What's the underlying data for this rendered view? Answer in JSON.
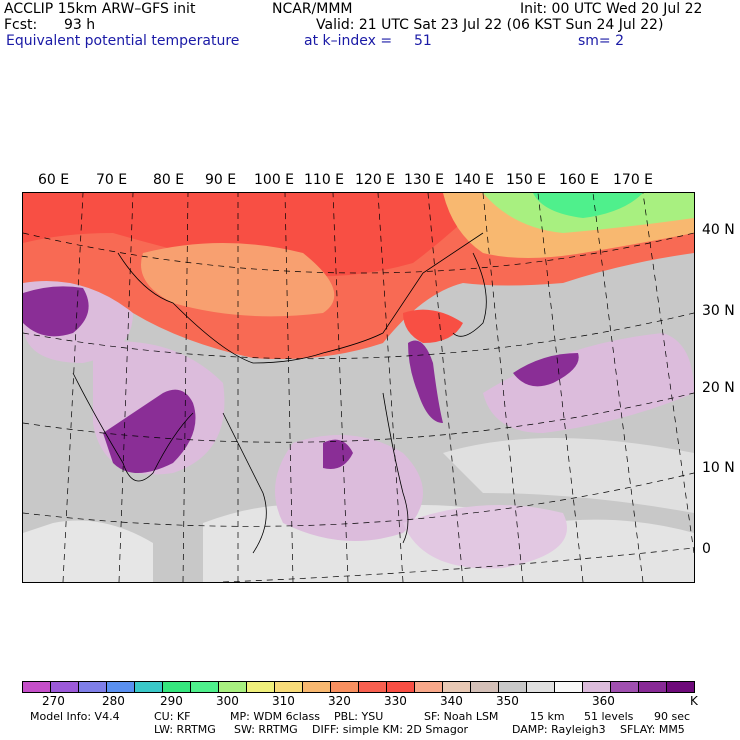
{
  "header": {
    "model": "ACCLIP 15km ARW–GFS init",
    "center": "NCAR/MMM",
    "init": "Init: 00 UTC Wed 20 Jul 22",
    "fcst_label": "Fcst:",
    "fcst_value": "93 h",
    "valid": "Valid: 21 UTC Sat 23 Jul 22 (06 KST Sun 24 Jul 22)",
    "field": "Equivalent potential temperature",
    "level": "at k–index =",
    "level_value": "51",
    "smooth": "sm= 2"
  },
  "map": {
    "lon_labels": [
      "60 E",
      "70 E",
      "80 E",
      "90 E",
      "100 E",
      "110 E",
      "120 E",
      "130 E",
      "140 E",
      "150 E",
      "160 E",
      "170 E"
    ],
    "lat_labels": [
      "40 N",
      "30 N",
      "20 N",
      "10 N",
      "0"
    ]
  },
  "colorbar": {
    "colors": [
      "#c54fc9",
      "#9c5ad9",
      "#7f7fe8",
      "#5a90f0",
      "#3ac8c8",
      "#36e67e",
      "#4ff08c",
      "#a8f080",
      "#f0f07c",
      "#f8dc7a",
      "#f8b870",
      "#f89060",
      "#f86050",
      "#f84f44",
      "#f8a88a",
      "#e8c8b4",
      "#d4c0b8",
      "#c8c8c8",
      "#e0e0e0",
      "#f8f8f8",
      "#dcbcdc",
      "#a050b0",
      "#882a96",
      "#6e0a7a"
    ],
    "labels": [
      "270",
      "280",
      "290",
      "300",
      "310",
      "320",
      "330",
      "340",
      "350",
      "360"
    ],
    "unit": "K"
  },
  "footer": {
    "model_info": "Model Info: V4.4",
    "cu": "CU: KF",
    "mp": "MP: WDM 6class",
    "pbl": "PBL: YSU",
    "sf": "SF: Noah LSM",
    "res": "15 km",
    "levels": "51 levels",
    "dt": "90 sec",
    "lw": "LW: RRTMG",
    "sw": "SW: RRTMG",
    "diff": "DIFF: simple KM: 2D Smagor",
    "damp": "DAMP: Rayleigh3",
    "sflay": "SFLAY: MM5"
  }
}
